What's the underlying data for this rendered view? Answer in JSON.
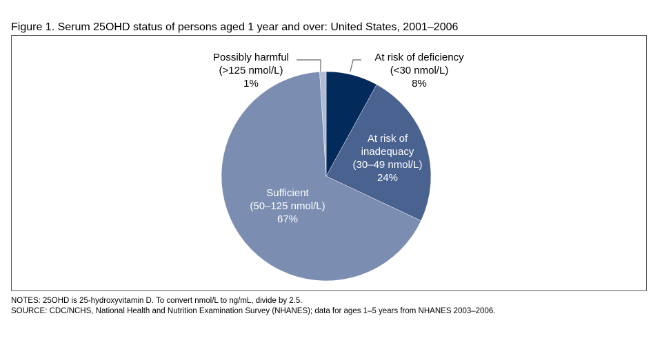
{
  "chart_data": {
    "type": "pie",
    "title": "Figure 1. Serum 25OHD status of persons aged 1 year and over: United States, 2001–2006",
    "slices": [
      {
        "label": "At risk of deficiency",
        "range": "(<30 nmol/L)",
        "value": 8,
        "value_label": "8%",
        "color": "#022a5a"
      },
      {
        "label": "At risk of inadequacy",
        "range": "(30–49 nmol/L)",
        "value": 24,
        "value_label": "24%",
        "color": "#4a6290"
      },
      {
        "label": "Sufficient",
        "range": "(50–125 nmol/L)",
        "value": 67,
        "value_label": "67%",
        "color": "#7b8db1"
      },
      {
        "label": "Possibly harmful",
        "range": "(>125 nmol/L)",
        "value": 1,
        "value_label": "1%",
        "color": "#b0bbd5"
      }
    ],
    "start": "top",
    "direction": "clockwise"
  },
  "notes": "NOTES: 25OHD is 25-hydroxyvitamin D. To convert nmol/L to ng/mL, divide by 2.5.",
  "source": "SOURCE: CDC/NCHS, National Health and Nutrition Examination Survey (NHANES); data for ages 1–5 years from NHANES 2003–2006."
}
